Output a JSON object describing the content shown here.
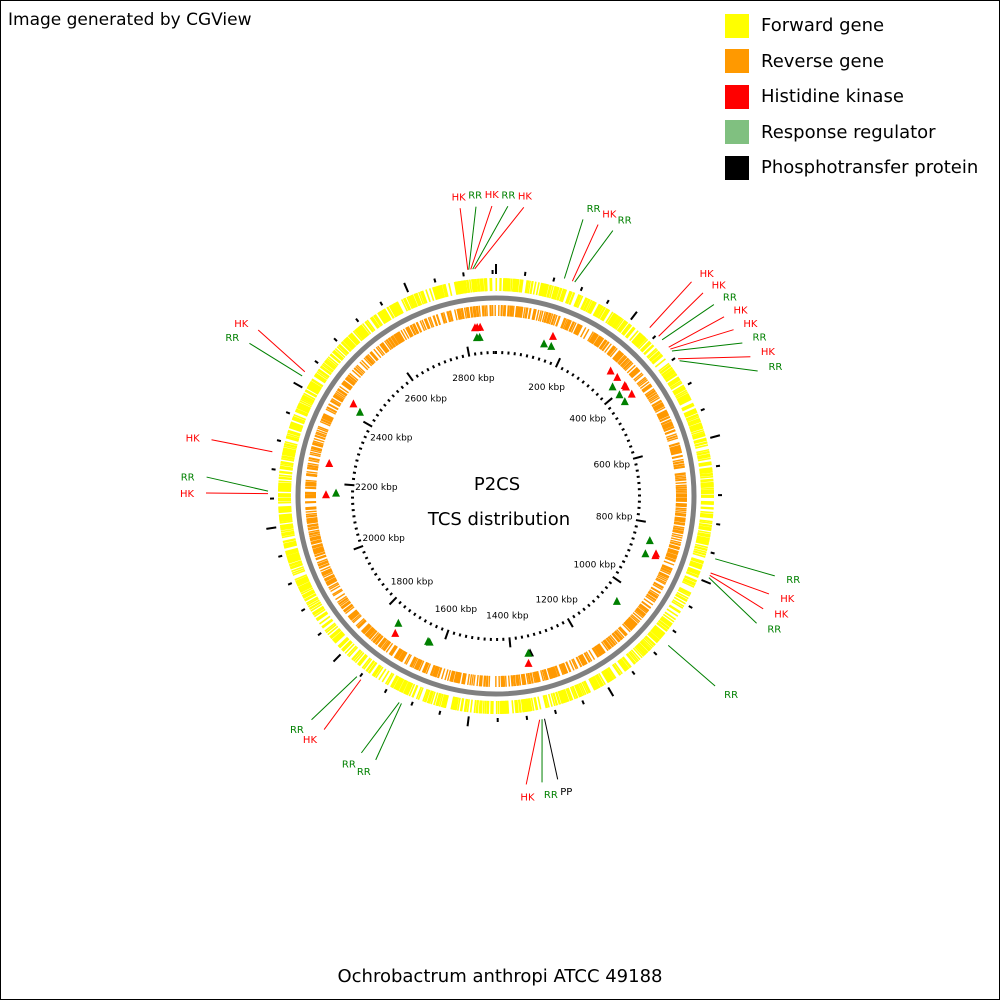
{
  "credit": "Image generated by CGView",
  "caption": "Ochrobactrum anthropi ATCC 49188",
  "center_title": "P2CS",
  "center_subtitle": "TCS distribution",
  "colors": {
    "forward": "#ffff00",
    "reverse": "#ff9900",
    "hk": "#ff0000",
    "rr": "#008000",
    "pp": "#000000",
    "legend_rr": "#80c080",
    "backbone": "#808080"
  },
  "legend": [
    {
      "label": "Forward gene",
      "color": "#ffff00"
    },
    {
      "label": "Reverse gene",
      "color": "#ff9900"
    },
    {
      "label": "Histidine kinase",
      "color": "#ff0000"
    },
    {
      "label": "Response regulator",
      "color": "#80c080"
    },
    {
      "label": "Phosphotransfer protein",
      "color": "#000000"
    }
  ],
  "map": {
    "genome_length_kbp": 2887,
    "tick_labels": [
      "200 kbp",
      "400 kbp",
      "600 kbp",
      "800 kbp",
      "1000 kbp",
      "1200 kbp",
      "1400 kbp",
      "1600 kbp",
      "1800 kbp",
      "2000 kbp",
      "2200 kbp",
      "2400 kbp",
      "2600 kbp",
      "2800 kbp"
    ],
    "features": [
      {
        "label": "HK",
        "type": "hk",
        "pos_kbp": 2830
      },
      {
        "label": "RR",
        "type": "rr",
        "pos_kbp": 2832
      },
      {
        "label": "HK",
        "type": "hk",
        "pos_kbp": 2836
      },
      {
        "label": "RR",
        "type": "rr",
        "pos_kbp": 2840
      },
      {
        "label": "HK",
        "type": "hk",
        "pos_kbp": 2844
      },
      {
        "label": "RR",
        "type": "rr",
        "pos_kbp": 140
      },
      {
        "label": "HK",
        "type": "hk",
        "pos_kbp": 157
      },
      {
        "label": "RR",
        "type": "rr",
        "pos_kbp": 162
      },
      {
        "label": "HK",
        "type": "hk",
        "pos_kbp": 340
      },
      {
        "label": "HK",
        "type": "hk",
        "pos_kbp": 365
      },
      {
        "label": "RR",
        "type": "rr",
        "pos_kbp": 375
      },
      {
        "label": "HK",
        "type": "hk",
        "pos_kbp": 395
      },
      {
        "label": "HK",
        "type": "hk",
        "pos_kbp": 400
      },
      {
        "label": "RR",
        "type": "rr",
        "pos_kbp": 405
      },
      {
        "label": "HK",
        "type": "hk",
        "pos_kbp": 425
      },
      {
        "label": "RR",
        "type": "rr",
        "pos_kbp": 430
      },
      {
        "label": "RR",
        "type": "rr",
        "pos_kbp": 850
      },
      {
        "label": "HK",
        "type": "hk",
        "pos_kbp": 880
      },
      {
        "label": "HK",
        "type": "hk",
        "pos_kbp": 885
      },
      {
        "label": "RR",
        "type": "rr",
        "pos_kbp": 890
      },
      {
        "label": "RR",
        "type": "rr",
        "pos_kbp": 1050
      },
      {
        "label": "PP",
        "type": "pp",
        "pos_kbp": 1345
      },
      {
        "label": "RR",
        "type": "rr",
        "pos_kbp": 1350
      },
      {
        "label": "HK",
        "type": "hk",
        "pos_kbp": 1355
      },
      {
        "label": "RR",
        "type": "rr",
        "pos_kbp": 1640
      },
      {
        "label": "RR",
        "type": "rr",
        "pos_kbp": 1645
      },
      {
        "label": "HK",
        "type": "hk",
        "pos_kbp": 1735
      },
      {
        "label": "RR",
        "type": "rr",
        "pos_kbp": 1745
      },
      {
        "label": "HK",
        "type": "hk",
        "pos_kbp": 2170
      },
      {
        "label": "RR",
        "type": "rr",
        "pos_kbp": 2175
      },
      {
        "label": "HK",
        "type": "hk",
        "pos_kbp": 2255
      },
      {
        "label": "RR",
        "type": "rr",
        "pos_kbp": 2420
      },
      {
        "label": "HK",
        "type": "hk",
        "pos_kbp": 2430
      }
    ]
  }
}
